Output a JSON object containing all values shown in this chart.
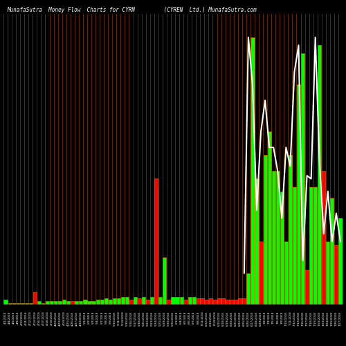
{
  "title": "MunafaSutra  Money Flow  Charts for CYRN         (CYREN  Ltd.) MunafaSutra.com",
  "background_color": "#000000",
  "bar_edge_color": "#FF6600",
  "positive_color": "#00FF00",
  "negative_color": "#FF0000",
  "line_color": "#FFFFFF",
  "dates": [
    "4/3/2018",
    "4/4/2018",
    "4/5/2018",
    "4/9/2018",
    "4/10/2018",
    "4/11/2018",
    "4/12/2018",
    "4/13/2018",
    "4/16/2018",
    "4/17/2018",
    "4/18/2018",
    "4/19/2018",
    "4/20/2018",
    "4/23/2018",
    "4/24/2018",
    "4/25/2018",
    "4/26/2018",
    "4/27/2018",
    "4/30/2018",
    "5/1/2018",
    "5/2/2018",
    "5/3/2018",
    "5/4/2018",
    "5/7/2018",
    "5/8/2018",
    "5/9/2018",
    "5/10/2018",
    "5/11/2018",
    "5/14/2018",
    "5/15/2018",
    "5/16/2018",
    "5/17/2018",
    "5/18/2018",
    "5/21/2018",
    "5/22/2018",
    "5/23/2018",
    "5/24/2018",
    "5/25/2018",
    "5/29/2018",
    "5/30/2018",
    "5/31/2018",
    "6/1/2018",
    "6/4/2018",
    "6/5/2018",
    "6/6/2018",
    "6/7/2018",
    "6/8/2018",
    "6/11/2018",
    "6/12/2018",
    "6/13/2018",
    "6/14/2018",
    "6/15/2018",
    "6/18/2018",
    "6/19/2018",
    "6/20/2018",
    "6/21/2018",
    "6/22/2018",
    "6/25/2018",
    "6/26/2018",
    "6/27/2018",
    "6/28/2018",
    "6/29/2018",
    "7/2/2018",
    "7/3/2018",
    "7/5/2018",
    "7/6/2018",
    "7/9/2018",
    "7/10/2018",
    "7/11/2018",
    "7/12/2018",
    "7/13/2018",
    "7/16/2018",
    "7/17/2018",
    "7/18/2018",
    "7/19/2018",
    "7/20/2018",
    "7/23/2018",
    "7/24/2018",
    "7/25/2018",
    "7/26/2018",
    "7/27/2018"
  ],
  "values": [
    3,
    1,
    1,
    1,
    1,
    1,
    1,
    8,
    2,
    1,
    2,
    2,
    2,
    2,
    3,
    2,
    2,
    2,
    2,
    3,
    2,
    2,
    3,
    3,
    4,
    3,
    4,
    4,
    5,
    5,
    3,
    5,
    4,
    5,
    3,
    5,
    80,
    5,
    30,
    3,
    5,
    5,
    5,
    3,
    5,
    5,
    4,
    4,
    3,
    4,
    3,
    4,
    4,
    3,
    3,
    3,
    4,
    4,
    20,
    170,
    80,
    40,
    95,
    110,
    85,
    85,
    72,
    40,
    95,
    75,
    140,
    160,
    22,
    75,
    75,
    165,
    85,
    40,
    68,
    38,
    55
  ],
  "signs": [
    1,
    1,
    1,
    1,
    1,
    1,
    1,
    -1,
    1,
    1,
    1,
    1,
    1,
    1,
    1,
    1,
    -1,
    1,
    1,
    1,
    1,
    1,
    1,
    1,
    1,
    1,
    1,
    1,
    1,
    1,
    -1,
    1,
    -1,
    1,
    -1,
    1,
    -1,
    1,
    1,
    -1,
    1,
    1,
    1,
    -1,
    1,
    1,
    -1,
    -1,
    -1,
    -1,
    -1,
    -1,
    -1,
    -1,
    -1,
    -1,
    -1,
    -1,
    1,
    1,
    1,
    -1,
    1,
    1,
    1,
    1,
    1,
    1,
    1,
    1,
    1,
    1,
    -1,
    1,
    1,
    1,
    -1,
    1,
    1,
    -1,
    1
  ],
  "line_x": [
    57,
    58,
    59,
    60,
    61,
    62,
    63,
    64,
    65,
    66,
    67,
    68,
    69,
    70,
    71,
    72,
    73,
    74,
    75,
    76,
    77,
    78,
    79,
    80
  ],
  "line_y": [
    20,
    170,
    140,
    60,
    110,
    130,
    100,
    100,
    85,
    55,
    100,
    88,
    148,
    165,
    28,
    82,
    80,
    170,
    90,
    45,
    72,
    40,
    58,
    40
  ]
}
